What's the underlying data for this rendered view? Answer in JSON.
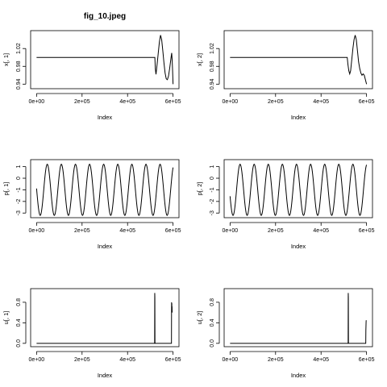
{
  "title": "fig_10.jpeg",
  "chart_data": [
    {
      "type": "line",
      "id": "x1",
      "xlabel": "Index",
      "ylabel": "x[, 1]",
      "xlim": [
        0,
        600000
      ],
      "ylim": [
        0.935,
        1.055
      ],
      "x_ticks": [
        0,
        200000,
        400000,
        600000
      ],
      "x_tick_labels": [
        "0e+00",
        "2e+05",
        "4e+05",
        "6e+05"
      ],
      "y_ticks": [
        0.94,
        0.98,
        1.02
      ],
      "y_tick_labels": [
        "0.94",
        "0.98",
        "1.02"
      ],
      "points": [
        [
          0,
          1.0
        ],
        [
          520000,
          1.0
        ],
        [
          522000,
          0.975
        ],
        [
          525000,
          0.962
        ],
        [
          530000,
          0.985
        ],
        [
          535000,
          1.01
        ],
        [
          540000,
          1.035
        ],
        [
          545000,
          1.05
        ],
        [
          550000,
          1.04
        ],
        [
          555000,
          1.015
        ],
        [
          560000,
          0.988
        ],
        [
          565000,
          0.965
        ],
        [
          570000,
          0.952
        ],
        [
          575000,
          0.95
        ],
        [
          580000,
          0.958
        ],
        [
          585000,
          0.975
        ],
        [
          590000,
          0.995
        ],
        [
          594000,
          1.01
        ],
        [
          596000,
          0.995
        ],
        [
          598000,
          0.97
        ],
        [
          600000,
          0.94
        ]
      ]
    },
    {
      "type": "line",
      "id": "x2",
      "xlabel": "Index",
      "ylabel": "x[, 2]",
      "xlim": [
        0,
        600000
      ],
      "ylim": [
        0.935,
        1.055
      ],
      "x_ticks": [
        0,
        200000,
        400000,
        600000
      ],
      "x_tick_labels": [
        "0e+00",
        "2e+05",
        "4e+05",
        "6e+05"
      ],
      "y_ticks": [
        0.94,
        0.98,
        1.02
      ],
      "y_tick_labels": [
        "0.94",
        "0.98",
        "1.02"
      ],
      "points": [
        [
          0,
          1.0
        ],
        [
          515000,
          1.0
        ],
        [
          518000,
          0.985
        ],
        [
          522000,
          0.97
        ],
        [
          526000,
          0.963
        ],
        [
          530000,
          0.97
        ],
        [
          535000,
          0.995
        ],
        [
          540000,
          1.02
        ],
        [
          545000,
          1.04
        ],
        [
          550000,
          1.05
        ],
        [
          555000,
          1.04
        ],
        [
          560000,
          1.015
        ],
        [
          565000,
          0.99
        ],
        [
          570000,
          0.975
        ],
        [
          575000,
          0.965
        ],
        [
          580000,
          0.96
        ],
        [
          585000,
          0.963
        ],
        [
          590000,
          0.96
        ],
        [
          595000,
          0.95
        ],
        [
          600000,
          0.94
        ]
      ]
    },
    {
      "type": "line",
      "id": "p1",
      "xlabel": "Index",
      "ylabel": "p[, 1]",
      "xlim": [
        0,
        600000
      ],
      "ylim": [
        -3.2,
        1.4
      ],
      "x_ticks": [
        0,
        200000,
        400000,
        600000
      ],
      "x_tick_labels": [
        "0e+00",
        "2e+05",
        "4e+05",
        "6e+05"
      ],
      "y_ticks": [
        -3,
        -2,
        -1,
        0,
        1
      ],
      "y_tick_labels": [
        "-3",
        "-2",
        "-1",
        "0",
        "1"
      ],
      "sine": {
        "x_start": 0,
        "x_end": 600000,
        "period": 62000,
        "phase_x0": 47000,
        "center": -1.0,
        "amplitude": 2.2,
        "samples": 600
      }
    },
    {
      "type": "line",
      "id": "p2",
      "xlabel": "Index",
      "ylabel": "p[, 2]",
      "xlim": [
        0,
        600000
      ],
      "ylim": [
        -3.2,
        1.4
      ],
      "x_ticks": [
        0,
        200000,
        400000,
        600000
      ],
      "x_tick_labels": [
        "0e+00",
        "2e+05",
        "4e+05",
        "6e+05"
      ],
      "y_ticks": [
        -3,
        -2,
        -1,
        0,
        1
      ],
      "y_tick_labels": [
        "-3",
        "-2",
        "-1",
        "0",
        "1"
      ],
      "sine": {
        "x_start": 0,
        "x_end": 600000,
        "period": 62000,
        "phase_x0": 44000,
        "center": -1.0,
        "amplitude": 2.2,
        "samples": 600
      }
    },
    {
      "type": "line",
      "id": "u1",
      "xlabel": "Index",
      "ylabel": "u[, 1]",
      "xlim": [
        0,
        600000
      ],
      "ylim": [
        -0.02,
        1.02
      ],
      "x_ticks": [
        0,
        200000,
        400000,
        600000
      ],
      "x_tick_labels": [
        "0e+00",
        "2e+05",
        "4e+05",
        "6e+05"
      ],
      "y_ticks": [
        0.0,
        0.4,
        0.8
      ],
      "y_tick_labels": [
        "0.0",
        "0.4",
        "0.8"
      ],
      "points": [
        [
          0,
          0
        ],
        [
          519000,
          0
        ],
        [
          519500,
          0.98
        ],
        [
          520000,
          0.9
        ],
        [
          520500,
          0
        ],
        [
          593000,
          0
        ],
        [
          593500,
          0.8
        ],
        [
          594000,
          0.7
        ],
        [
          594500,
          0.78
        ],
        [
          595000,
          0.65
        ],
        [
          595500,
          0.72
        ],
        [
          596000,
          0.6
        ]
      ]
    },
    {
      "type": "line",
      "id": "u2",
      "xlabel": "Index",
      "ylabel": "u[, 2]",
      "xlim": [
        0,
        600000
      ],
      "ylim": [
        -0.02,
        1.02
      ],
      "x_ticks": [
        0,
        200000,
        400000,
        600000
      ],
      "x_tick_labels": [
        "0e+00",
        "2e+05",
        "4e+05",
        "6e+05"
      ],
      "y_ticks": [
        0.0,
        0.4,
        0.8
      ],
      "y_tick_labels": [
        "0.0",
        "0.4",
        "0.8"
      ],
      "points": [
        [
          0,
          0
        ],
        [
          519000,
          0
        ],
        [
          519500,
          0.98
        ],
        [
          520000,
          0.9
        ],
        [
          520500,
          0
        ],
        [
          596500,
          0
        ],
        [
          597000,
          0.25
        ],
        [
          598000,
          0.42
        ],
        [
          598500,
          0.45
        ]
      ]
    }
  ]
}
